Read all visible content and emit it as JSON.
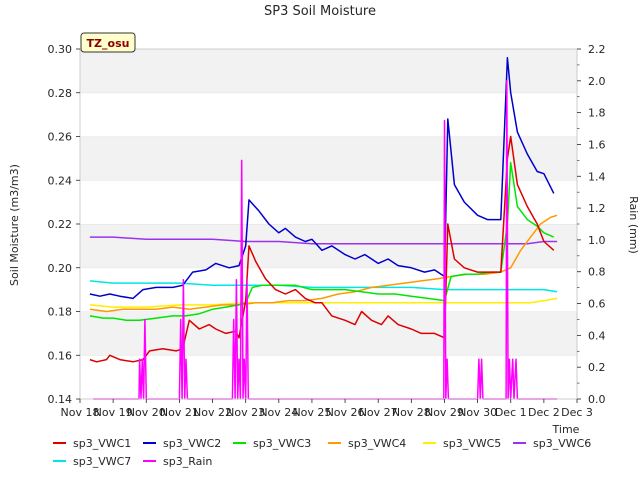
{
  "chart_data": {
    "type": "line",
    "title": "SP3 Soil Moisture",
    "badge": "TZ_osu",
    "xlabel": "Time",
    "ylabel": "Soil Moisture (m3/m3)",
    "y2label": "Rain (mm)",
    "x_ticks": [
      "Nov 18",
      "Nov 19",
      "Nov 20",
      "Nov 21",
      "Nov 22",
      "Nov 23",
      "Nov 24",
      "Nov 25",
      "Nov 26",
      "Nov 27",
      "Nov 28",
      "Nov 29",
      "Nov 30",
      "Dec 1",
      "Dec 2",
      "Dec 3"
    ],
    "xlim": [
      0,
      15
    ],
    "ylim": [
      0.14,
      0.3
    ],
    "y_ticks": [
      "0.14",
      "0.16",
      "0.18",
      "0.20",
      "0.22",
      "0.24",
      "0.26",
      "0.28",
      "0.30"
    ],
    "y2lim": [
      0.0,
      2.2
    ],
    "y2_ticks": [
      "0.0",
      "0.2",
      "0.4",
      "0.6",
      "0.8",
      "1.0",
      "1.2",
      "1.4",
      "1.6",
      "1.8",
      "2.0",
      "2.2"
    ],
    "grid": "horizontal bands",
    "legend_placement": "bottom",
    "series": [
      {
        "name": "sp3_VWC1",
        "color": "#dd0000",
        "axis": "left",
        "points": [
          [
            0.3,
            0.158
          ],
          [
            0.5,
            0.157
          ],
          [
            0.8,
            0.158
          ],
          [
            0.9,
            0.16
          ],
          [
            1.2,
            0.158
          ],
          [
            1.6,
            0.157
          ],
          [
            1.9,
            0.158
          ],
          [
            2.1,
            0.162
          ],
          [
            2.5,
            0.163
          ],
          [
            2.9,
            0.162
          ],
          [
            3.1,
            0.163
          ],
          [
            3.3,
            0.176
          ],
          [
            3.6,
            0.172
          ],
          [
            3.9,
            0.174
          ],
          [
            4.1,
            0.172
          ],
          [
            4.4,
            0.17
          ],
          [
            4.7,
            0.171
          ],
          [
            4.8,
            0.168
          ],
          [
            5.0,
            0.185
          ],
          [
            5.1,
            0.21
          ],
          [
            5.3,
            0.203
          ],
          [
            5.6,
            0.195
          ],
          [
            5.9,
            0.19
          ],
          [
            6.2,
            0.188
          ],
          [
            6.5,
            0.19
          ],
          [
            6.8,
            0.186
          ],
          [
            7.1,
            0.184
          ],
          [
            7.3,
            0.184
          ],
          [
            7.6,
            0.178
          ],
          [
            8.0,
            0.176
          ],
          [
            8.3,
            0.174
          ],
          [
            8.5,
            0.18
          ],
          [
            8.8,
            0.176
          ],
          [
            9.1,
            0.174
          ],
          [
            9.3,
            0.178
          ],
          [
            9.6,
            0.174
          ],
          [
            10.0,
            0.172
          ],
          [
            10.3,
            0.17
          ],
          [
            10.7,
            0.17
          ],
          [
            11.0,
            0.168
          ],
          [
            11.1,
            0.22
          ],
          [
            11.3,
            0.204
          ],
          [
            11.6,
            0.2
          ],
          [
            12.0,
            0.198
          ],
          [
            12.4,
            0.198
          ],
          [
            12.7,
            0.198
          ],
          [
            12.9,
            0.25
          ],
          [
            13.0,
            0.26
          ],
          [
            13.2,
            0.238
          ],
          [
            13.5,
            0.228
          ],
          [
            13.8,
            0.22
          ],
          [
            14.0,
            0.212
          ],
          [
            14.3,
            0.208
          ]
        ]
      },
      {
        "name": "sp3_VWC2",
        "color": "#0000cc",
        "axis": "left",
        "points": [
          [
            0.3,
            0.188
          ],
          [
            0.6,
            0.187
          ],
          [
            0.9,
            0.188
          ],
          [
            1.2,
            0.187
          ],
          [
            1.6,
            0.186
          ],
          [
            1.9,
            0.19
          ],
          [
            2.3,
            0.191
          ],
          [
            2.8,
            0.191
          ],
          [
            3.1,
            0.192
          ],
          [
            3.4,
            0.198
          ],
          [
            3.8,
            0.199
          ],
          [
            4.1,
            0.202
          ],
          [
            4.5,
            0.2
          ],
          [
            4.8,
            0.201
          ],
          [
            5.0,
            0.21
          ],
          [
            5.1,
            0.231
          ],
          [
            5.4,
            0.226
          ],
          [
            5.7,
            0.22
          ],
          [
            6.0,
            0.216
          ],
          [
            6.2,
            0.218
          ],
          [
            6.5,
            0.214
          ],
          [
            6.8,
            0.212
          ],
          [
            7.0,
            0.213
          ],
          [
            7.3,
            0.208
          ],
          [
            7.6,
            0.21
          ],
          [
            8.0,
            0.206
          ],
          [
            8.3,
            0.204
          ],
          [
            8.6,
            0.206
          ],
          [
            9.0,
            0.202
          ],
          [
            9.3,
            0.204
          ],
          [
            9.6,
            0.201
          ],
          [
            10.0,
            0.2
          ],
          [
            10.4,
            0.198
          ],
          [
            10.7,
            0.199
          ],
          [
            11.0,
            0.196
          ],
          [
            11.1,
            0.268
          ],
          [
            11.3,
            0.238
          ],
          [
            11.6,
            0.23
          ],
          [
            12.0,
            0.224
          ],
          [
            12.3,
            0.222
          ],
          [
            12.7,
            0.222
          ],
          [
            12.9,
            0.296
          ],
          [
            13.0,
            0.28
          ],
          [
            13.2,
            0.262
          ],
          [
            13.5,
            0.252
          ],
          [
            13.8,
            0.244
          ],
          [
            14.0,
            0.243
          ],
          [
            14.3,
            0.234
          ]
        ]
      },
      {
        "name": "sp3_VWC3",
        "color": "#00e600",
        "axis": "left",
        "points": [
          [
            0.3,
            0.178
          ],
          [
            0.7,
            0.177
          ],
          [
            1.0,
            0.177
          ],
          [
            1.4,
            0.176
          ],
          [
            1.8,
            0.176
          ],
          [
            2.3,
            0.177
          ],
          [
            2.8,
            0.178
          ],
          [
            3.2,
            0.178
          ],
          [
            3.6,
            0.179
          ],
          [
            4.0,
            0.181
          ],
          [
            4.4,
            0.182
          ],
          [
            4.8,
            0.183
          ],
          [
            5.0,
            0.184
          ],
          [
            5.2,
            0.191
          ],
          [
            5.5,
            0.192
          ],
          [
            6.0,
            0.192
          ],
          [
            6.5,
            0.192
          ],
          [
            7.0,
            0.19
          ],
          [
            7.5,
            0.19
          ],
          [
            8.0,
            0.19
          ],
          [
            8.5,
            0.189
          ],
          [
            9.0,
            0.188
          ],
          [
            9.5,
            0.188
          ],
          [
            10.0,
            0.187
          ],
          [
            10.5,
            0.186
          ],
          [
            11.0,
            0.185
          ],
          [
            11.2,
            0.196
          ],
          [
            11.6,
            0.197
          ],
          [
            12.0,
            0.197
          ],
          [
            12.4,
            0.198
          ],
          [
            12.7,
            0.198
          ],
          [
            12.9,
            0.22
          ],
          [
            13.0,
            0.248
          ],
          [
            13.2,
            0.228
          ],
          [
            13.5,
            0.222
          ],
          [
            13.8,
            0.219
          ],
          [
            14.0,
            0.216
          ],
          [
            14.3,
            0.214
          ]
        ]
      },
      {
        "name": "sp3_VWC4",
        "color": "#ff9900",
        "axis": "left",
        "points": [
          [
            0.3,
            0.181
          ],
          [
            0.8,
            0.18
          ],
          [
            1.3,
            0.181
          ],
          [
            1.8,
            0.181
          ],
          [
            2.3,
            0.181
          ],
          [
            2.8,
            0.182
          ],
          [
            3.3,
            0.181
          ],
          [
            3.8,
            0.182
          ],
          [
            4.3,
            0.183
          ],
          [
            4.8,
            0.183
          ],
          [
            5.3,
            0.184
          ],
          [
            5.8,
            0.184
          ],
          [
            6.3,
            0.185
          ],
          [
            6.8,
            0.185
          ],
          [
            7.3,
            0.186
          ],
          [
            7.8,
            0.188
          ],
          [
            8.3,
            0.189
          ],
          [
            8.8,
            0.191
          ],
          [
            9.3,
            0.192
          ],
          [
            9.8,
            0.193
          ],
          [
            10.3,
            0.194
          ],
          [
            10.8,
            0.195
          ],
          [
            11.2,
            0.196
          ],
          [
            11.7,
            0.197
          ],
          [
            12.2,
            0.197
          ],
          [
            12.7,
            0.198
          ],
          [
            13.0,
            0.2
          ],
          [
            13.3,
            0.208
          ],
          [
            13.6,
            0.214
          ],
          [
            13.9,
            0.22
          ],
          [
            14.2,
            0.223
          ],
          [
            14.4,
            0.224
          ]
        ]
      },
      {
        "name": "sp3_VWC5",
        "color": "#ffee00",
        "axis": "left",
        "points": [
          [
            0.3,
            0.183
          ],
          [
            1.0,
            0.182
          ],
          [
            2.0,
            0.182
          ],
          [
            3.0,
            0.183
          ],
          [
            4.0,
            0.183
          ],
          [
            5.0,
            0.184
          ],
          [
            6.0,
            0.184
          ],
          [
            7.0,
            0.184
          ],
          [
            8.0,
            0.184
          ],
          [
            9.0,
            0.184
          ],
          [
            10.0,
            0.184
          ],
          [
            11.0,
            0.184
          ],
          [
            12.0,
            0.184
          ],
          [
            13.0,
            0.184
          ],
          [
            13.6,
            0.184
          ],
          [
            14.0,
            0.185
          ],
          [
            14.4,
            0.186
          ]
        ]
      },
      {
        "name": "sp3_VWC6",
        "color": "#9933ee",
        "axis": "left",
        "points": [
          [
            0.3,
            0.214
          ],
          [
            1.0,
            0.214
          ],
          [
            2.0,
            0.213
          ],
          [
            3.0,
            0.213
          ],
          [
            4.0,
            0.213
          ],
          [
            5.0,
            0.212
          ],
          [
            6.0,
            0.212
          ],
          [
            7.0,
            0.211
          ],
          [
            8.0,
            0.211
          ],
          [
            9.0,
            0.211
          ],
          [
            10.0,
            0.211
          ],
          [
            11.0,
            0.211
          ],
          [
            12.0,
            0.211
          ],
          [
            13.0,
            0.211
          ],
          [
            13.5,
            0.211
          ],
          [
            14.0,
            0.212
          ],
          [
            14.4,
            0.212
          ]
        ]
      },
      {
        "name": "sp3_VWC7",
        "color": "#00e5e5",
        "axis": "left",
        "points": [
          [
            0.3,
            0.194
          ],
          [
            1.0,
            0.193
          ],
          [
            2.0,
            0.193
          ],
          [
            3.0,
            0.193
          ],
          [
            4.0,
            0.192
          ],
          [
            5.0,
            0.192
          ],
          [
            6.0,
            0.192
          ],
          [
            7.0,
            0.191
          ],
          [
            8.0,
            0.191
          ],
          [
            9.0,
            0.191
          ],
          [
            10.0,
            0.191
          ],
          [
            11.0,
            0.19
          ],
          [
            12.0,
            0.19
          ],
          [
            13.0,
            0.19
          ],
          [
            13.5,
            0.19
          ],
          [
            14.0,
            0.19
          ],
          [
            14.4,
            0.189
          ]
        ]
      },
      {
        "name": "sp3_Rain",
        "color": "#ff00ff",
        "axis": "right",
        "points": [
          [
            0.4,
            0.0
          ],
          [
            1.78,
            0.0
          ],
          [
            1.8,
            0.25
          ],
          [
            1.84,
            0.0
          ],
          [
            1.88,
            0.25
          ],
          [
            1.92,
            0.0
          ],
          [
            1.96,
            0.5
          ],
          [
            2.0,
            0.0
          ],
          [
            3.0,
            0.0
          ],
          [
            3.04,
            0.5
          ],
          [
            3.08,
            0.0
          ],
          [
            3.12,
            0.75
          ],
          [
            3.16,
            0.0
          ],
          [
            3.2,
            0.25
          ],
          [
            3.24,
            0.0
          ],
          [
            4.6,
            0.0
          ],
          [
            4.64,
            0.5
          ],
          [
            4.68,
            0.0
          ],
          [
            4.72,
            0.75
          ],
          [
            4.76,
            0.0
          ],
          [
            4.8,
            0.25
          ],
          [
            4.84,
            0.0
          ],
          [
            4.88,
            1.5
          ],
          [
            4.92,
            0.0
          ],
          [
            4.96,
            0.25
          ],
          [
            5.0,
            0.0
          ],
          [
            5.04,
            0.75
          ],
          [
            5.08,
            0.0
          ],
          [
            10.98,
            0.0
          ],
          [
            11.0,
            1.75
          ],
          [
            11.04,
            0.0
          ],
          [
            11.08,
            0.25
          ],
          [
            11.12,
            0.0
          ],
          [
            12.0,
            0.0
          ],
          [
            12.04,
            0.25
          ],
          [
            12.08,
            0.0
          ],
          [
            12.12,
            0.25
          ],
          [
            12.16,
            0.0
          ],
          [
            12.86,
            0.0
          ],
          [
            12.88,
            2.0
          ],
          [
            12.92,
            0.0
          ],
          [
            12.96,
            0.25
          ],
          [
            13.0,
            0.0
          ],
          [
            13.06,
            0.25
          ],
          [
            13.1,
            0.0
          ],
          [
            13.16,
            0.25
          ],
          [
            13.2,
            0.0
          ],
          [
            14.4,
            0.0
          ]
        ]
      }
    ]
  }
}
